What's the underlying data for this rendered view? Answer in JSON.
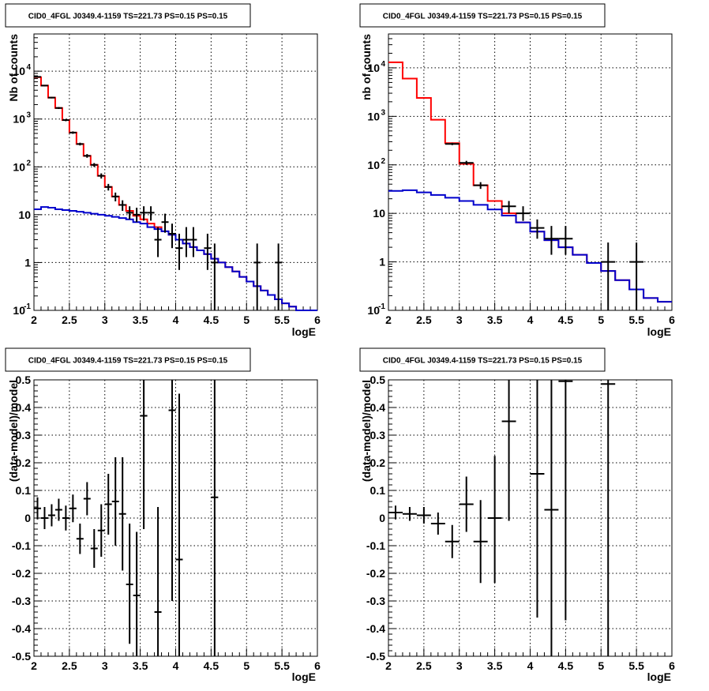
{
  "chart_data": [
    {
      "type": "line",
      "title": "CID0_4FGL J0349.4-1159 TS=221.73 PS=0.15 PS=0.15",
      "xlabel": "logE",
      "ylabel": "Nb of counts",
      "xlim": [
        2,
        6
      ],
      "ylim": [
        0.1,
        60000
      ],
      "yscale": "log",
      "grid": true,
      "x_ticks": [
        "2",
        "2.5",
        "3",
        "3.5",
        "4",
        "4.5",
        "5",
        "5.5",
        "6"
      ],
      "y_ticks": [
        "10^-1",
        "1",
        "10",
        "10^2",
        "10^3",
        "10^4"
      ],
      "series": [
        {
          "kind": "step",
          "color": "#ff0000",
          "bin_edges": [
            2.0,
            2.1,
            2.2,
            2.3,
            2.4,
            2.5,
            2.6,
            2.7,
            2.8,
            2.9,
            3.0,
            3.1,
            3.2,
            3.3,
            3.4,
            3.5,
            3.6,
            3.7,
            3.8,
            3.9,
            4.0,
            4.1,
            4.2,
            4.3,
            4.4,
            4.5,
            4.6,
            4.7,
            4.8,
            4.9,
            5.0,
            5.1,
            5.2,
            5.3,
            5.4,
            5.5,
            5.6,
            5.7,
            5.8,
            5.9,
            6.0
          ],
          "values": [
            7500,
            5000,
            2800,
            1700,
            950,
            520,
            300,
            170,
            110,
            65,
            38,
            24,
            16,
            12,
            9.5,
            8,
            6.5,
            5.5,
            4.5,
            3.8,
            3.0,
            2.5,
            2.1,
            1.8,
            1.5,
            1.2,
            1.0,
            0.8,
            0.65,
            0.5,
            0.4,
            0.32,
            0.26,
            0.21,
            0.17,
            0.14,
            0.12,
            0.1,
            0.1,
            0.1
          ]
        },
        {
          "kind": "step",
          "color": "#0000cc",
          "bin_edges": [
            2.0,
            2.1,
            2.2,
            2.3,
            2.4,
            2.5,
            2.6,
            2.7,
            2.8,
            2.9,
            3.0,
            3.1,
            3.2,
            3.3,
            3.4,
            3.5,
            3.6,
            3.7,
            3.8,
            3.9,
            4.0,
            4.1,
            4.2,
            4.3,
            4.4,
            4.5,
            4.6,
            4.7,
            4.8,
            4.9,
            5.0,
            5.1,
            5.2,
            5.3,
            5.4,
            5.5,
            5.6,
            5.7,
            5.8,
            5.9,
            6.0
          ],
          "values": [
            13,
            14.5,
            14,
            13,
            12.5,
            12,
            11.5,
            11,
            10.5,
            10,
            9.5,
            9,
            8.5,
            8,
            7,
            6.5,
            5.5,
            5,
            4.5,
            3.8,
            3.0,
            2.5,
            2.1,
            1.8,
            1.5,
            1.2,
            1.0,
            0.8,
            0.65,
            0.5,
            0.4,
            0.32,
            0.26,
            0.21,
            0.17,
            0.14,
            0.12,
            0.1,
            0.1,
            0.1
          ]
        },
        {
          "kind": "errorbar",
          "color": "#000000",
          "points": [
            {
              "x": 2.05,
              "xerr": 0.05,
              "y": 7600,
              "ylo": 7400,
              "yhi": 7800
            },
            {
              "x": 2.15,
              "xerr": 0.05,
              "y": 5000,
              "ylo": 4850,
              "yhi": 5150
            },
            {
              "x": 2.25,
              "xerr": 0.05,
              "y": 2800,
              "ylo": 2700,
              "yhi": 2900
            },
            {
              "x": 2.35,
              "xerr": 0.05,
              "y": 1700,
              "ylo": 1620,
              "yhi": 1780
            },
            {
              "x": 2.45,
              "xerr": 0.05,
              "y": 950,
              "ylo": 900,
              "yhi": 1000
            },
            {
              "x": 2.55,
              "xerr": 0.05,
              "y": 520,
              "ylo": 490,
              "yhi": 550
            },
            {
              "x": 2.65,
              "xerr": 0.05,
              "y": 300,
              "ylo": 280,
              "yhi": 320
            },
            {
              "x": 2.75,
              "xerr": 0.05,
              "y": 170,
              "ylo": 155,
              "yhi": 185
            },
            {
              "x": 2.85,
              "xerr": 0.05,
              "y": 110,
              "ylo": 100,
              "yhi": 120
            },
            {
              "x": 2.95,
              "xerr": 0.05,
              "y": 65,
              "ylo": 57,
              "yhi": 73
            },
            {
              "x": 3.05,
              "xerr": 0.05,
              "y": 38,
              "ylo": 32,
              "yhi": 44
            },
            {
              "x": 3.15,
              "xerr": 0.05,
              "y": 24,
              "ylo": 19,
              "yhi": 29
            },
            {
              "x": 3.25,
              "xerr": 0.05,
              "y": 16,
              "ylo": 12,
              "yhi": 20
            },
            {
              "x": 3.35,
              "xerr": 0.05,
              "y": 11,
              "ylo": 8,
              "yhi": 15
            },
            {
              "x": 3.45,
              "xerr": 0.05,
              "y": 10,
              "ylo": 7,
              "yhi": 14
            },
            {
              "x": 3.55,
              "xerr": 0.05,
              "y": 11,
              "ylo": 7.5,
              "yhi": 15
            },
            {
              "x": 3.65,
              "xerr": 0.05,
              "y": 11,
              "ylo": 7.5,
              "yhi": 15
            },
            {
              "x": 3.75,
              "xerr": 0.05,
              "y": 3,
              "ylo": 1.3,
              "yhi": 5.5
            },
            {
              "x": 3.85,
              "xerr": 0.05,
              "y": 7,
              "ylo": 4.2,
              "yhi": 10.5
            },
            {
              "x": 3.95,
              "xerr": 0.05,
              "y": 4,
              "ylo": 2,
              "yhi": 6.5
            },
            {
              "x": 4.05,
              "xerr": 0.05,
              "y": 2,
              "ylo": 0.7,
              "yhi": 4
            },
            {
              "x": 4.15,
              "xerr": 0.05,
              "y": 3,
              "ylo": 1.3,
              "yhi": 5.5
            },
            {
              "x": 4.25,
              "xerr": 0.05,
              "y": 3,
              "ylo": 1.3,
              "yhi": 5.5
            },
            {
              "x": 4.45,
              "xerr": 0.05,
              "y": 2,
              "ylo": 0.7,
              "yhi": 4
            },
            {
              "x": 4.55,
              "xerr": 0.05,
              "y": 1,
              "ylo": 0.1,
              "yhi": 2.5
            },
            {
              "x": 5.15,
              "xerr": 0.05,
              "y": 1,
              "ylo": 0.1,
              "yhi": 2.5
            },
            {
              "x": 5.45,
              "xerr": 0.05,
              "y": 1,
              "ylo": 0.1,
              "yhi": 2.5
            }
          ]
        }
      ]
    },
    {
      "type": "line",
      "title": "CID0_4FGL J0349.4-1159 TS=221.73 PS=0.15 PS=0.15",
      "xlabel": "logE",
      "ylabel": "nb of counts",
      "xlim": [
        2,
        6
      ],
      "ylim": [
        0.1,
        50000
      ],
      "yscale": "log",
      "grid": true,
      "x_ticks": [
        "2",
        "2.5",
        "3",
        "3.5",
        "4",
        "4.5",
        "5",
        "5.5",
        "6"
      ],
      "y_ticks": [
        "10^-1",
        "1",
        "10",
        "10^2",
        "10^3",
        "10^4"
      ],
      "series": [
        {
          "kind": "step",
          "color": "#ff0000",
          "bin_edges": [
            2.0,
            2.2,
            2.4,
            2.6,
            2.8,
            3.0,
            3.2,
            3.4,
            3.6,
            3.8,
            4.0,
            4.2,
            4.4,
            4.6,
            4.8,
            5.0,
            5.2,
            5.4,
            5.6,
            5.8,
            6.0
          ],
          "values": [
            13000,
            6000,
            2400,
            850,
            280,
            105,
            38,
            18,
            10,
            6.5,
            4.2,
            2.8,
            2.0,
            1.4,
            0.95,
            0.65,
            0.42,
            0.27,
            0.18,
            0.15
          ]
        },
        {
          "kind": "step",
          "color": "#0000cc",
          "bin_edges": [
            2.0,
            2.2,
            2.4,
            2.6,
            2.8,
            3.0,
            3.2,
            3.4,
            3.6,
            3.8,
            4.0,
            4.2,
            4.4,
            4.6,
            4.8,
            5.0,
            5.2,
            5.4,
            5.6,
            5.8,
            6.0
          ],
          "values": [
            29,
            30,
            27,
            24,
            21,
            18,
            15,
            12,
            9,
            6.5,
            4.2,
            2.8,
            2.0,
            1.4,
            0.95,
            0.65,
            0.42,
            0.27,
            0.18,
            0.15
          ]
        },
        {
          "kind": "errorbar",
          "color": "#000000",
          "points": [
            {
              "x": 2.9,
              "xerr": 0.1,
              "y": 270,
              "ylo": 255,
              "yhi": 285
            },
            {
              "x": 3.1,
              "xerr": 0.1,
              "y": 110,
              "ylo": 100,
              "yhi": 121
            },
            {
              "x": 3.3,
              "xerr": 0.1,
              "y": 38,
              "ylo": 32,
              "yhi": 44
            },
            {
              "x": 3.7,
              "xerr": 0.1,
              "y": 14,
              "ylo": 10,
              "yhi": 18
            },
            {
              "x": 3.9,
              "xerr": 0.1,
              "y": 10,
              "ylo": 7,
              "yhi": 14
            },
            {
              "x": 4.1,
              "xerr": 0.1,
              "y": 5,
              "ylo": 3,
              "yhi": 7.5
            },
            {
              "x": 4.3,
              "xerr": 0.1,
              "y": 3,
              "ylo": 1.4,
              "yhi": 5.5
            },
            {
              "x": 4.5,
              "xerr": 0.1,
              "y": 3,
              "ylo": 1.4,
              "yhi": 5.5
            },
            {
              "x": 5.1,
              "xerr": 0.1,
              "y": 1,
              "ylo": 0.1,
              "yhi": 2.5
            },
            {
              "x": 5.5,
              "xerr": 0.1,
              "y": 1,
              "ylo": 0.1,
              "yhi": 2.5
            }
          ]
        }
      ]
    },
    {
      "type": "scatter",
      "title": "CID0_4FGL J0349.4-1159 TS=221.73 PS=0.15 PS=0.15",
      "xlabel": "logE",
      "ylabel": "(data-model)/model",
      "xlim": [
        2,
        6
      ],
      "ylim": [
        -0.5,
        0.5
      ],
      "grid": true,
      "x_ticks": [
        "2",
        "2.5",
        "3",
        "3.5",
        "4",
        "4.5",
        "5",
        "5.5",
        "6"
      ],
      "y_ticks": [
        "-0.5",
        "-0.4",
        "-0.3",
        "-0.2",
        "-0.1",
        "0",
        "0.1",
        "0.2",
        "0.3",
        "0.4",
        "0.5"
      ],
      "series": [
        {
          "kind": "errorbar",
          "color": "#000000",
          "points": [
            {
              "x": 2.05,
              "xerr": 0.05,
              "y": 0.035,
              "ylo": -0.005,
              "yhi": 0.075
            },
            {
              "x": 2.15,
              "xerr": 0.05,
              "y": 0.0,
              "ylo": -0.04,
              "yhi": 0.04
            },
            {
              "x": 2.25,
              "xerr": 0.05,
              "y": 0.01,
              "ylo": -0.03,
              "yhi": 0.05
            },
            {
              "x": 2.35,
              "xerr": 0.05,
              "y": 0.03,
              "ylo": -0.01,
              "yhi": 0.07
            },
            {
              "x": 2.45,
              "xerr": 0.05,
              "y": 0.0,
              "ylo": -0.045,
              "yhi": 0.045
            },
            {
              "x": 2.55,
              "xerr": 0.05,
              "y": 0.035,
              "ylo": -0.015,
              "yhi": 0.085
            },
            {
              "x": 2.65,
              "xerr": 0.05,
              "y": -0.075,
              "ylo": -0.13,
              "yhi": -0.02
            },
            {
              "x": 2.75,
              "xerr": 0.05,
              "y": 0.07,
              "ylo": 0.01,
              "yhi": 0.13
            },
            {
              "x": 2.85,
              "xerr": 0.05,
              "y": -0.11,
              "ylo": -0.18,
              "yhi": -0.04
            },
            {
              "x": 2.95,
              "xerr": 0.05,
              "y": -0.045,
              "ylo": -0.14,
              "yhi": 0.05
            },
            {
              "x": 3.05,
              "xerr": 0.05,
              "y": 0.05,
              "ylo": -0.06,
              "yhi": 0.16
            },
            {
              "x": 3.15,
              "xerr": 0.05,
              "y": 0.06,
              "ylo": -0.1,
              "yhi": 0.22
            },
            {
              "x": 3.25,
              "xerr": 0.05,
              "y": 0.015,
              "ylo": -0.19,
              "yhi": 0.22
            },
            {
              "x": 3.35,
              "xerr": 0.05,
              "y": -0.24,
              "ylo": -0.455,
              "yhi": -0.02
            },
            {
              "x": 3.45,
              "xerr": 0.05,
              "y": -0.28,
              "ylo": -0.5,
              "yhi": -0.05
            },
            {
              "x": 3.55,
              "xerr": 0.05,
              "y": 0.37,
              "ylo": -0.04,
              "yhi": 0.5
            },
            {
              "x": 3.75,
              "xerr": 0.05,
              "y": -0.34,
              "ylo": -0.5,
              "yhi": 0.04
            },
            {
              "x": 3.95,
              "xerr": 0.05,
              "y": 0.39,
              "ylo": -0.3,
              "yhi": 0.5
            },
            {
              "x": 4.05,
              "xerr": 0.05,
              "y": -0.15,
              "ylo": -0.5,
              "yhi": 0.45
            },
            {
              "x": 4.55,
              "xerr": 0.05,
              "y": 0.075,
              "ylo": -0.5,
              "yhi": 0.5
            }
          ]
        }
      ]
    },
    {
      "type": "scatter",
      "title": "CID0_4FGL J0349.4-1159 TS=221.73 PS=0.15 PS=0.15",
      "xlabel": "logE",
      "ylabel": "(data-model)/model",
      "xlim": [
        2,
        6
      ],
      "ylim": [
        -0.5,
        0.5
      ],
      "grid": true,
      "x_ticks": [
        "2",
        "2.5",
        "3",
        "3.5",
        "4",
        "4.5",
        "5",
        "5.5",
        "6"
      ],
      "y_ticks": [
        "-0.5",
        "-0.4",
        "-0.3",
        "-0.2",
        "-0.1",
        "0",
        "0.1",
        "0.2",
        "0.3",
        "0.4",
        "0.5"
      ],
      "series": [
        {
          "kind": "errorbar",
          "color": "#000000",
          "points": [
            {
              "x": 2.1,
              "xerr": 0.1,
              "y": 0.02,
              "ylo": -0.005,
              "yhi": 0.045
            },
            {
              "x": 2.3,
              "xerr": 0.1,
              "y": 0.015,
              "ylo": -0.01,
              "yhi": 0.04
            },
            {
              "x": 2.5,
              "xerr": 0.1,
              "y": 0.01,
              "ylo": -0.02,
              "yhi": 0.04
            },
            {
              "x": 2.7,
              "xerr": 0.1,
              "y": -0.02,
              "ylo": -0.06,
              "yhi": 0.02
            },
            {
              "x": 2.9,
              "xerr": 0.1,
              "y": -0.085,
              "ylo": -0.145,
              "yhi": -0.025
            },
            {
              "x": 3.1,
              "xerr": 0.1,
              "y": 0.05,
              "ylo": -0.05,
              "yhi": 0.15
            },
            {
              "x": 3.3,
              "xerr": 0.1,
              "y": -0.085,
              "ylo": -0.235,
              "yhi": 0.065
            },
            {
              "x": 3.5,
              "xerr": 0.1,
              "y": 0.0,
              "ylo": -0.235,
              "yhi": 0.225
            },
            {
              "x": 3.7,
              "xerr": 0.1,
              "y": 0.35,
              "ylo": -0.01,
              "yhi": 0.5
            },
            {
              "x": 4.1,
              "xerr": 0.1,
              "y": 0.16,
              "ylo": -0.36,
              "yhi": 0.5
            },
            {
              "x": 4.3,
              "xerr": 0.1,
              "y": 0.03,
              "ylo": -0.5,
              "yhi": 0.5
            },
            {
              "x": 4.5,
              "xerr": 0.1,
              "y": 0.495,
              "ylo": -0.37,
              "yhi": 0.5
            },
            {
              "x": 5.1,
              "xerr": 0.1,
              "y": 0.485,
              "ylo": -0.5,
              "yhi": 0.5
            }
          ]
        }
      ]
    }
  ]
}
